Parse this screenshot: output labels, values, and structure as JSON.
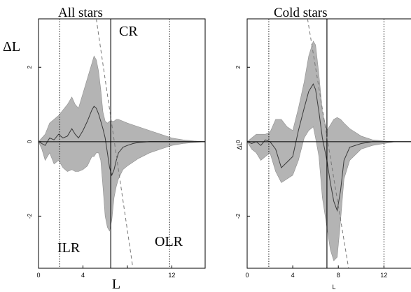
{
  "chart_data": [
    {
      "type": "area",
      "title": "All stars",
      "ylabel": "ΔL",
      "xlabel": "L",
      "xlim": [
        0,
        15
      ],
      "ylim": [
        -3.4,
        3.3
      ],
      "xticks": [
        0,
        4,
        8,
        12
      ],
      "xtick_labels": [
        "0",
        "4",
        "",
        "12"
      ],
      "yticks": [
        -2,
        0,
        2
      ],
      "ytick_labels": [
        "-2",
        "0",
        "2"
      ],
      "annotations": [
        "CR",
        "ILR",
        "OLR"
      ],
      "resonances": {
        "ILR": 1.9,
        "CR": 6.5,
        "OLR": 11.8
      },
      "dashed_line": [
        [
          5.2,
          3.3
        ],
        [
          8.5,
          -3.4
        ]
      ],
      "series": [
        {
          "x": [
            0,
            0.3,
            0.6,
            1.0,
            1.4,
            1.8,
            2.2,
            2.6,
            3.0,
            3.3,
            3.6,
            4.0,
            4.4,
            4.8,
            5.0,
            5.2,
            5.4,
            5.6,
            5.8,
            6.0,
            6.2,
            6.4,
            6.6,
            6.8,
            7.0,
            7.2,
            7.6,
            8.0,
            8.5,
            9.0,
            10.0,
            11.0,
            12.0,
            13.0,
            14.0,
            15.0
          ],
          "y": [
            0,
            -0.05,
            -0.1,
            0.1,
            0.05,
            0.2,
            0.1,
            0.15,
            0.35,
            0.2,
            0.1,
            0.3,
            0.55,
            0.85,
            0.95,
            0.9,
            0.75,
            0.55,
            0.35,
            0.1,
            -0.3,
            -0.7,
            -0.9,
            -0.75,
            -0.5,
            -0.3,
            -0.15,
            -0.1,
            -0.05,
            -0.02,
            0,
            0,
            0,
            0,
            0,
            0
          ],
          "upper": [
            0,
            0.1,
            0.2,
            0.5,
            0.6,
            0.7,
            0.85,
            1.0,
            1.2,
            1.0,
            0.9,
            1.3,
            1.7,
            2.1,
            2.3,
            2.2,
            1.9,
            1.4,
            0.8,
            0.55,
            0.5,
            0.55,
            0.55,
            0.55,
            0.6,
            0.6,
            0.55,
            0.5,
            0.45,
            0.4,
            0.3,
            0.2,
            0.1,
            0.05,
            0.02,
            0
          ],
          "lower": [
            0,
            -0.2,
            -0.5,
            -0.3,
            -0.6,
            -0.5,
            -0.7,
            -0.8,
            -0.75,
            -0.8,
            -0.8,
            -0.75,
            -0.65,
            -0.4,
            -0.4,
            -0.3,
            -0.3,
            -0.5,
            -1.2,
            -2.0,
            -2.3,
            -2.4,
            -2.1,
            -1.5,
            -1.2,
            -1.0,
            -0.75,
            -0.65,
            -0.55,
            -0.45,
            -0.3,
            -0.2,
            -0.1,
            -0.05,
            -0.02,
            0
          ]
        }
      ]
    },
    {
      "type": "area",
      "title": "Cold stars",
      "ylabel": "ΔL",
      "xlabel": "L",
      "xlim": [
        0,
        14.5
      ],
      "ylim": [
        -3.4,
        3.3
      ],
      "xticks": [
        0,
        4,
        8,
        12
      ],
      "xtick_labels": [
        "0",
        "4",
        "8",
        "12"
      ],
      "yticks": [
        -2,
        0,
        2
      ],
      "ytick_labels": [
        "-2",
        "0",
        "2"
      ],
      "resonances": {
        "ILR": 1.9,
        "CR": 7.0,
        "OLR": 12.0
      },
      "dashed_line": [
        [
          5.3,
          3.3
        ],
        [
          8.9,
          -3.4
        ]
      ],
      "series": [
        {
          "x": [
            0,
            0.4,
            0.8,
            1.2,
            1.6,
            2.0,
            2.5,
            3.0,
            3.5,
            4.0,
            4.5,
            5.0,
            5.4,
            5.8,
            6.0,
            6.3,
            6.6,
            7.0,
            7.3,
            7.6,
            7.9,
            8.2,
            8.5,
            9.0,
            10.0,
            11.0,
            12.0,
            13.0,
            14.0,
            14.5
          ],
          "y": [
            0,
            -0.05,
            0.0,
            -0.1,
            0.05,
            0.0,
            -0.2,
            -0.7,
            -0.55,
            -0.4,
            0.3,
            0.9,
            1.35,
            1.55,
            1.4,
            0.8,
            0.1,
            -0.5,
            -1.1,
            -1.6,
            -1.85,
            -1.3,
            -0.5,
            -0.15,
            -0.05,
            0,
            0,
            0,
            0,
            0
          ],
          "upper": [
            0,
            0.1,
            0.2,
            0.2,
            0.2,
            0.25,
            0.6,
            0.6,
            0.4,
            0.3,
            0.9,
            1.6,
            2.3,
            2.7,
            2.6,
            1.8,
            0.8,
            0.3,
            0.45,
            0.6,
            0.65,
            0.6,
            0.5,
            0.35,
            0.15,
            0.05,
            0.02,
            0,
            0,
            0
          ],
          "lower": [
            0,
            -0.2,
            -0.3,
            -0.5,
            -0.4,
            -0.3,
            -0.8,
            -1.1,
            -1.0,
            -0.9,
            -0.5,
            0.1,
            0.3,
            0.4,
            0.1,
            -0.4,
            -1.5,
            -2.3,
            -2.9,
            -3.2,
            -3.1,
            -2.1,
            -1.0,
            -0.5,
            -0.2,
            -0.1,
            -0.05,
            0,
            0,
            0
          ]
        }
      ]
    }
  ]
}
